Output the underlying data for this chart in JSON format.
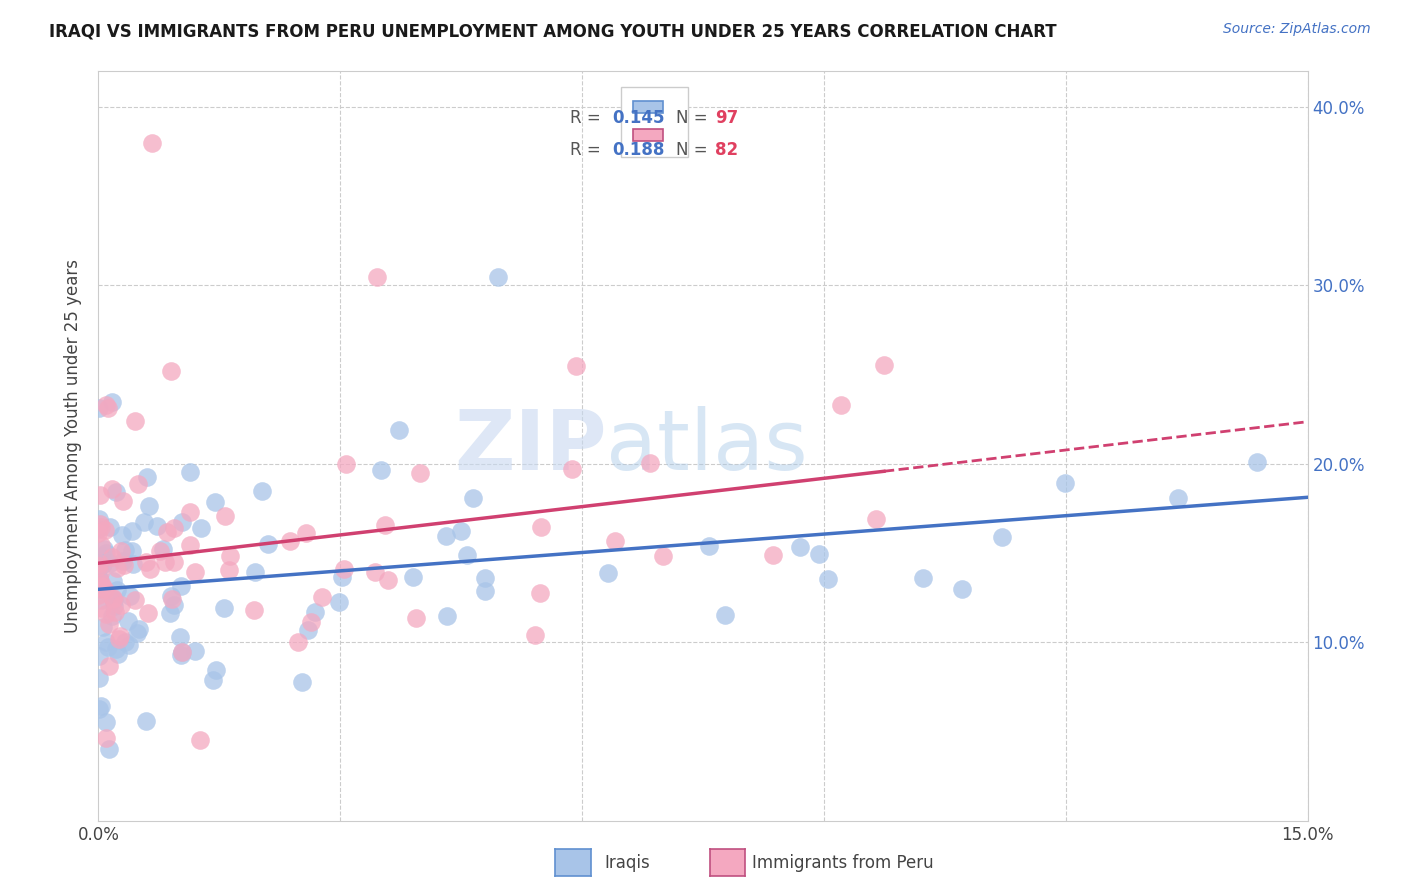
{
  "title": "IRAQI VS IMMIGRANTS FROM PERU UNEMPLOYMENT AMONG YOUTH UNDER 25 YEARS CORRELATION CHART",
  "source": "Source: ZipAtlas.com",
  "ylabel": "Unemployment Among Youth under 25 years",
  "xlim": [
    0.0,
    0.15
  ],
  "ylim": [
    0.0,
    0.42
  ],
  "color_iraqis": "#a8c4e8",
  "color_peru": "#f4a8c0",
  "color_line_iraqis": "#4472c4",
  "color_line_peru": "#d04070",
  "legend_r1": "R = 0.145",
  "legend_n1": "N = 97",
  "legend_r2": "R = 0.188",
  "legend_n2": "N = 82",
  "watermark_zip": "ZIP",
  "watermark_atlas": "atlas"
}
